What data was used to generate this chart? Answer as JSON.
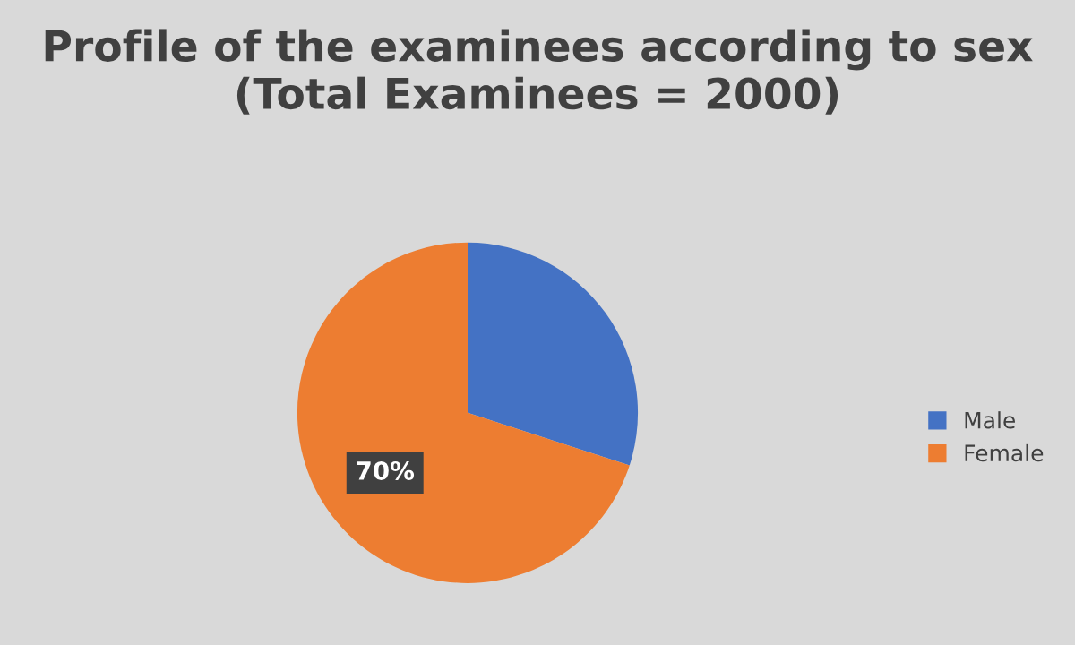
{
  "chart_data": {
    "type": "pie",
    "title": "Profile of the examinees according to sex (Total Examinees = 2000)",
    "categories": [
      "Male",
      "Female"
    ],
    "values": [
      30,
      70
    ],
    "colors": [
      "#4472c4",
      "#ed7d31"
    ],
    "value_labels": [
      null,
      "70%"
    ],
    "legend": "right"
  }
}
